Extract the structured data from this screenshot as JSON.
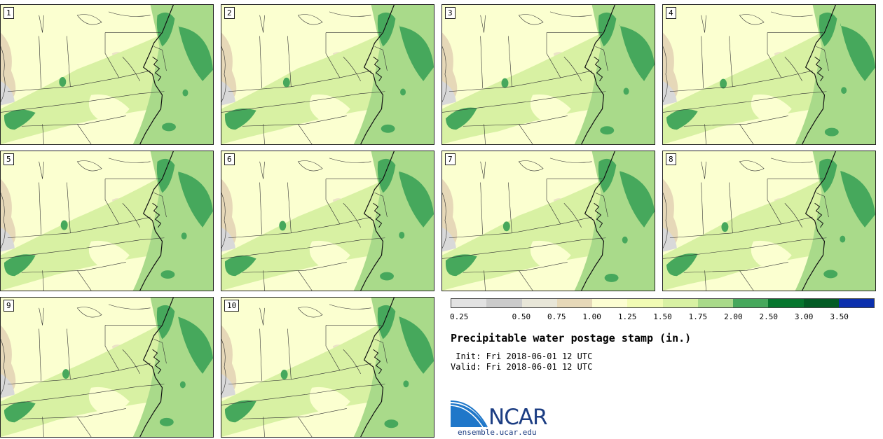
{
  "panels": [
    {
      "label": "1"
    },
    {
      "label": "2"
    },
    {
      "label": "3"
    },
    {
      "label": "4"
    },
    {
      "label": "5"
    },
    {
      "label": "6"
    },
    {
      "label": "7"
    },
    {
      "label": "8"
    },
    {
      "label": "9"
    },
    {
      "label": "10"
    }
  ],
  "legend": {
    "colors": [
      "#e2e2e2",
      "#cbcbcb",
      "#e8e6d8",
      "#e6d8b8",
      "#fcfdd2",
      "#f1fbb4",
      "#d8f1a3",
      "#a9da8a",
      "#46a85c",
      "#06762e",
      "#035c25",
      "#0b2fad"
    ],
    "ticks": [
      "0.25",
      "0.50",
      "0.75",
      "1.00",
      "1.25",
      "1.50",
      "1.75",
      "2.00",
      "2.50",
      "3.00",
      "3.50"
    ]
  },
  "title": "Precipitable water postage stamp (in.)",
  "init_text": " Init: Fri 2018-06-01 12 UTC",
  "valid_text": "Valid: Fri 2018-06-01 12 UTC",
  "logo_text": "NCAR",
  "url": "ensemble.ucar.edu"
}
